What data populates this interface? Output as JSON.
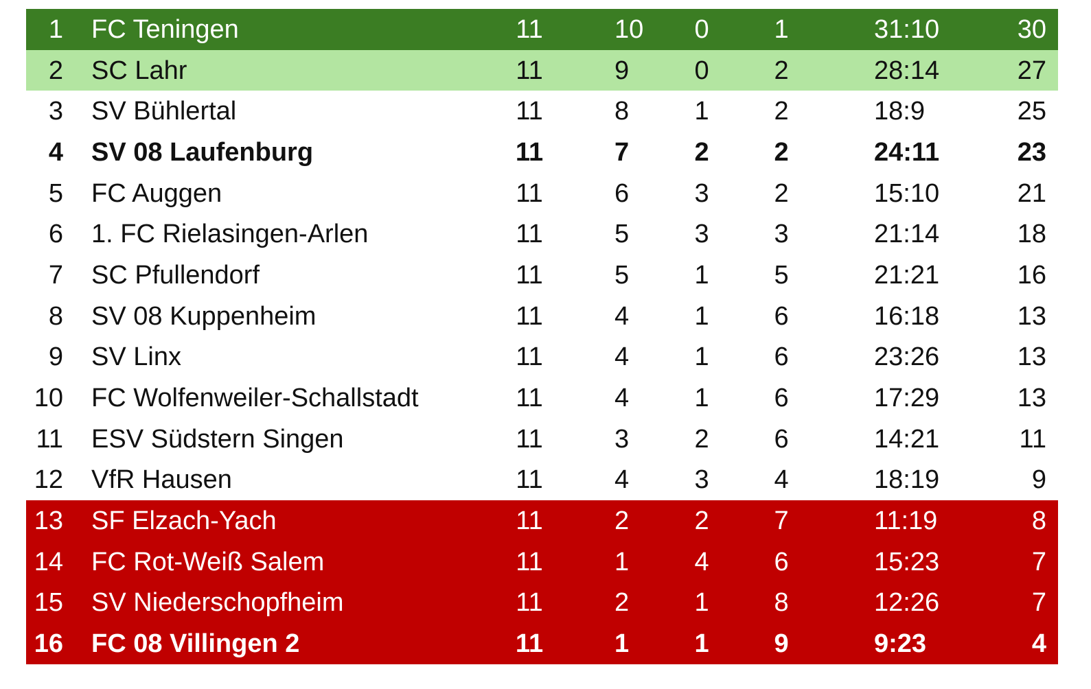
{
  "colors": {
    "champion": "#3b7d23",
    "promotion": "#b3e5a1",
    "relegation": "#c00000"
  },
  "rows": [
    {
      "rank": "1",
      "team": "FC Teningen",
      "games": "11",
      "w": "10",
      "d": "0",
      "l": "1",
      "goals": "31:10",
      "pts": "30",
      "zone": "champion",
      "bold": false
    },
    {
      "rank": "2",
      "team": "SC Lahr",
      "games": "11",
      "w": "9",
      "d": "0",
      "l": "2",
      "goals": "28:14",
      "pts": "27",
      "zone": "promotion",
      "bold": false
    },
    {
      "rank": "3",
      "team": "SV Bühlertal",
      "games": "11",
      "w": "8",
      "d": "1",
      "l": "2",
      "goals": "18:9",
      "pts": "25",
      "zone": "",
      "bold": false
    },
    {
      "rank": "4",
      "team": "SV 08 Laufenburg",
      "games": "11",
      "w": "7",
      "d": "2",
      "l": "2",
      "goals": "24:11",
      "pts": "23",
      "zone": "",
      "bold": true
    },
    {
      "rank": "5",
      "team": "FC Auggen",
      "games": "11",
      "w": "6",
      "d": "3",
      "l": "2",
      "goals": "15:10",
      "pts": "21",
      "zone": "",
      "bold": false
    },
    {
      "rank": "6",
      "team": "1. FC Rielasingen-Arlen",
      "games": "11",
      "w": "5",
      "d": "3",
      "l": "3",
      "goals": "21:14",
      "pts": "18",
      "zone": "",
      "bold": false
    },
    {
      "rank": "7",
      "team": "SC Pfullendorf",
      "games": "11",
      "w": "5",
      "d": "1",
      "l": "5",
      "goals": "21:21",
      "pts": "16",
      "zone": "",
      "bold": false
    },
    {
      "rank": "8",
      "team": "SV 08 Kuppenheim",
      "games": "11",
      "w": "4",
      "d": "1",
      "l": "6",
      "goals": "16:18",
      "pts": "13",
      "zone": "",
      "bold": false
    },
    {
      "rank": "9",
      "team": "SV Linx",
      "games": "11",
      "w": "4",
      "d": "1",
      "l": "6",
      "goals": "23:26",
      "pts": "13",
      "zone": "",
      "bold": false
    },
    {
      "rank": "10",
      "team": "FC Wolfenweiler-Schallstadt",
      "games": "11",
      "w": "4",
      "d": "1",
      "l": "6",
      "goals": "17:29",
      "pts": "13",
      "zone": "",
      "bold": false
    },
    {
      "rank": "11",
      "team": "ESV Südstern Singen",
      "games": "11",
      "w": "3",
      "d": "2",
      "l": "6",
      "goals": "14:21",
      "pts": "11",
      "zone": "",
      "bold": false
    },
    {
      "rank": "12",
      "team": "VfR Hausen",
      "games": "11",
      "w": "4",
      "d": "3",
      "l": "4",
      "goals": "18:19",
      "pts": "9",
      "zone": "",
      "bold": false
    },
    {
      "rank": "13",
      "team": "SF Elzach-Yach",
      "games": "11",
      "w": "2",
      "d": "2",
      "l": "7",
      "goals": "11:19",
      "pts": "8",
      "zone": "relegation",
      "bold": false
    },
    {
      "rank": "14",
      "team": "FC Rot-Weiß Salem",
      "games": "11",
      "w": "1",
      "d": "4",
      "l": "6",
      "goals": "15:23",
      "pts": "7",
      "zone": "relegation",
      "bold": false
    },
    {
      "rank": "15",
      "team": "SV Niederschopfheim",
      "games": "11",
      "w": "2",
      "d": "1",
      "l": "8",
      "goals": "12:26",
      "pts": "7",
      "zone": "relegation",
      "bold": false
    },
    {
      "rank": "16",
      "team": "FC 08 Villingen 2",
      "games": "11",
      "w": "1",
      "d": "1",
      "l": "9",
      "goals": "9:23",
      "pts": "4",
      "zone": "relegation",
      "bold": true
    }
  ]
}
